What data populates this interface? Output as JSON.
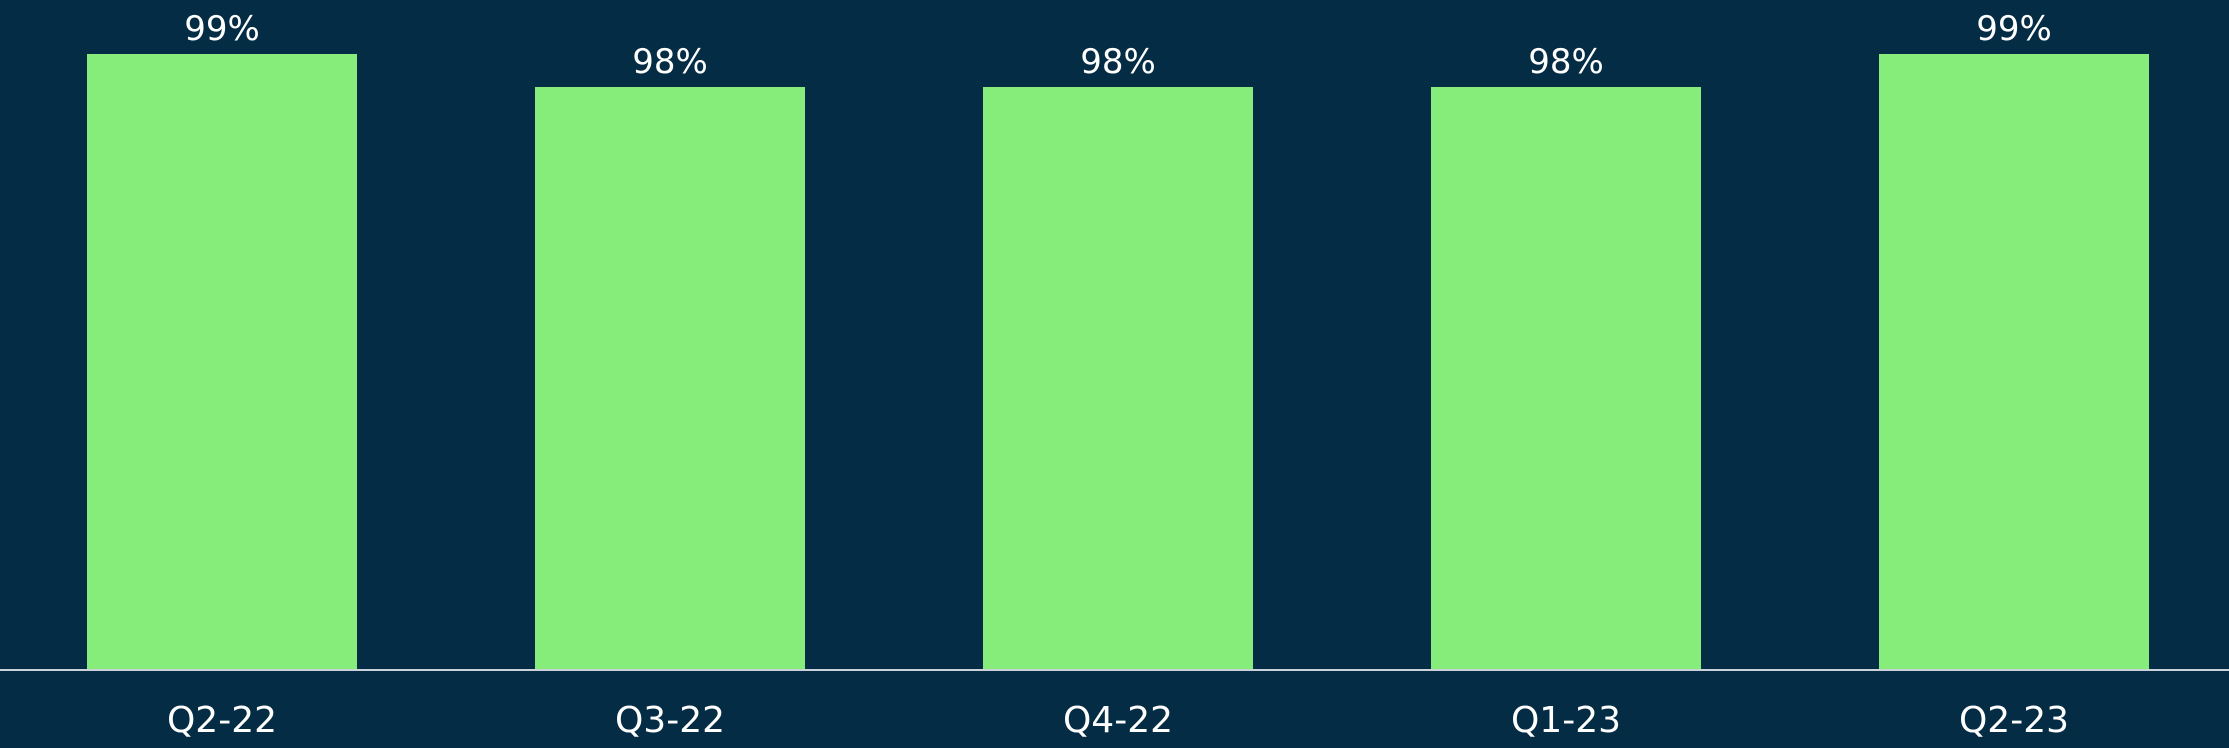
{
  "chart_data": {
    "type": "bar",
    "categories": [
      "Q2-22",
      "Q3-22",
      "Q4-22",
      "Q1-23",
      "Q2-23"
    ],
    "values": [
      99,
      98,
      98,
      98,
      99
    ],
    "value_labels": [
      "99%",
      "98%",
      "98%",
      "98%",
      "99%"
    ],
    "value_unit": "%",
    "title": "",
    "xlabel": "",
    "ylabel": "",
    "grid": false,
    "legend": "none"
  },
  "colors": {
    "background": "#042d45",
    "bar": "#87ed7a",
    "baseline": "#c9d3d9",
    "text": "#ffffff"
  }
}
